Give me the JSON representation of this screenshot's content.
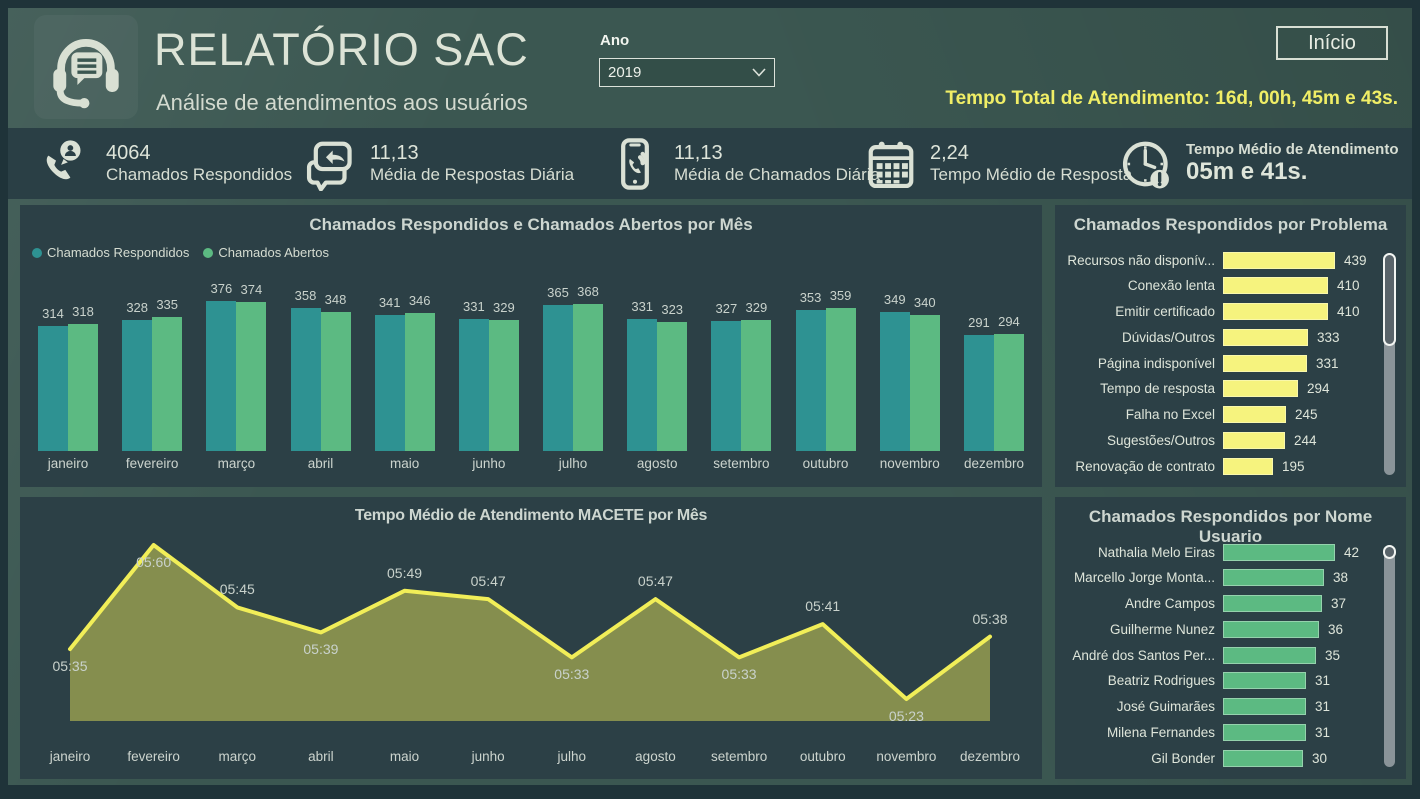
{
  "header": {
    "title": "RELATÓRIO SAC",
    "subtitle": "Análise de atendimentos aos usuários",
    "year_label": "Ano",
    "year_value": "2019",
    "home_button": "Início",
    "total_time": "Tempo Total de Atendimento: 16d, 00h, 45m e 43s."
  },
  "kpis": [
    {
      "icon": "phone-user-icon",
      "value": "4064",
      "label": "Chamados Respondidos"
    },
    {
      "icon": "chat-reply-icon",
      "value": "11,13",
      "label": "Média de Respostas Diária"
    },
    {
      "icon": "mobile-call-icon",
      "value": "11,13",
      "label": "Média de Chamados Diária"
    },
    {
      "icon": "calendar-icon",
      "value": "2,24",
      "label": "Tempo Médio de Resposta"
    },
    {
      "icon": "clock-alert-icon",
      "value": "05m e 41s.",
      "label": "Tempo Médio de Atendimento"
    }
  ],
  "colors": {
    "background": "#3B5751",
    "panel": "#2C4046",
    "kpi_strip": "#2A3F45",
    "teal_series": "#2E9292",
    "green_series": "#5CBA82",
    "yellow_bar": "#F6F37E",
    "yellow_line": "#F1EE58",
    "area_fill": "rgba(241,238,88,0.45)",
    "accent_text": "#F0EE66"
  },
  "chart_data": [
    {
      "type": "bar",
      "title": "Chamados Respondidos e Chamados Abertos por Mês",
      "categories": [
        "janeiro",
        "fevereiro",
        "março",
        "abril",
        "maio",
        "junho",
        "julho",
        "agosto",
        "setembro",
        "outubro",
        "novembro",
        "dezembro"
      ],
      "series": [
        {
          "name": "Chamados Respondidos",
          "color": "#2E9292",
          "values": [
            314,
            328,
            376,
            358,
            341,
            331,
            365,
            331,
            327,
            353,
            349,
            291
          ]
        },
        {
          "name": "Chamados Abertos",
          "color": "#5CBA82",
          "values": [
            318,
            335,
            374,
            348,
            346,
            329,
            368,
            323,
            329,
            359,
            340,
            294
          ]
        }
      ],
      "legend_position": "top-left",
      "grid": false,
      "ylim": [
        0,
        400
      ]
    },
    {
      "type": "bar",
      "orientation": "horizontal",
      "title": "Chamados Respondidos por Problema",
      "categories": [
        "Recursos não disponív...",
        "Conexão lenta",
        "Emitir certificado",
        "Dúvidas/Outros",
        "Página indisponível",
        "Tempo de resposta",
        "Falha no Excel",
        "Sugestões/Outros",
        "Renovação de contrato"
      ],
      "values": [
        439,
        410,
        410,
        333,
        331,
        294,
        245,
        244,
        195
      ],
      "color": "#F6F37E",
      "xlim": [
        0,
        439
      ]
    },
    {
      "type": "area",
      "title": "Tempo Médio de Atendimento MACETE por Mês",
      "categories": [
        "janeiro",
        "fevereiro",
        "março",
        "abril",
        "maio",
        "junho",
        "julho",
        "agosto",
        "setembro",
        "outubro",
        "novembro",
        "dezembro"
      ],
      "labels": [
        "05:35",
        "05:60",
        "05:45",
        "05:39",
        "05:49",
        "05:47",
        "05:33",
        "05:47",
        "05:33",
        "05:41",
        "05:23",
        "05:38"
      ],
      "values_seconds": [
        335,
        360,
        345,
        339,
        349,
        347,
        333,
        347,
        333,
        341,
        323,
        338
      ],
      "label_positions": [
        "below",
        "below",
        "above",
        "below",
        "above",
        "above",
        "below",
        "above",
        "below",
        "above",
        "below",
        "above"
      ],
      "line_color": "#F1EE58",
      "fill_color": "rgba(241,238,88,0.45)"
    },
    {
      "type": "bar",
      "orientation": "horizontal",
      "title": "Chamados Respondidos por Nome Usuario",
      "categories": [
        "Nathalia Melo Eiras",
        "Marcello Jorge Monta...",
        "Andre Campos",
        "Guilherme Nunez",
        "André dos Santos Per...",
        "Beatriz Rodrigues",
        "José Guimarães",
        "Milena Fernandes",
        "Gil Bonder"
      ],
      "values": [
        42,
        38,
        37,
        36,
        35,
        31,
        31,
        31,
        30
      ],
      "color": "#5CBA82",
      "xlim": [
        0,
        42
      ]
    }
  ]
}
